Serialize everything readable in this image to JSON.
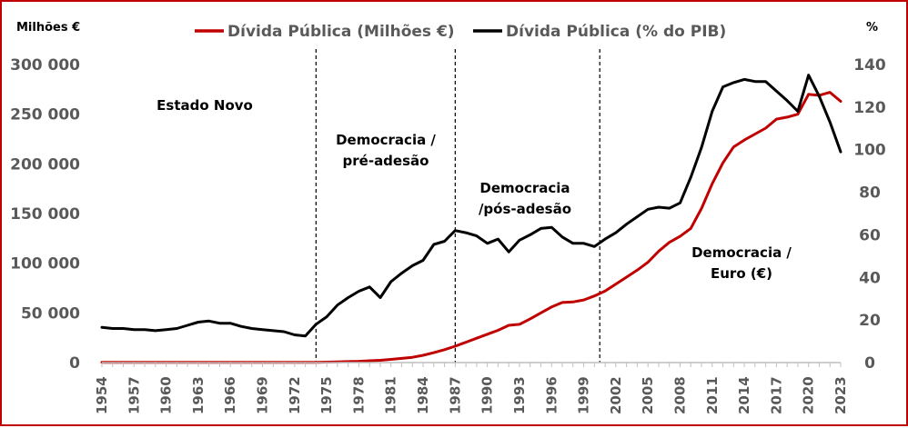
{
  "chart_data": {
    "type": "line",
    "title": "",
    "y_left_label": "Milhões €",
    "y_right_label": "%",
    "y_left_range": [
      0,
      300000
    ],
    "y_left_ticks": [
      0,
      50000,
      100000,
      150000,
      200000,
      250000,
      300000
    ],
    "y_left_tick_labels": [
      "0",
      "50 000",
      "100 000",
      "150 000",
      "200 000",
      "250 000",
      "300 000"
    ],
    "y_right_range": [
      0,
      140
    ],
    "y_right_ticks": [
      0,
      20,
      40,
      60,
      80,
      100,
      120,
      140
    ],
    "y_right_tick_labels": [
      "0",
      "20",
      "40",
      "60",
      "80",
      "100",
      "120",
      "140"
    ],
    "x_range": [
      1954,
      2023
    ],
    "x_tick_labels": [
      "1954",
      "1957",
      "1960",
      "1963",
      "1966",
      "1969",
      "1972",
      "1975",
      "1978",
      "1981",
      "1984",
      "1987",
      "1990",
      "1993",
      "1996",
      "1999",
      "2002",
      "2005",
      "2008",
      "2011",
      "2014",
      "2017",
      "2020",
      "2023"
    ],
    "legend_position": "top",
    "grid": false,
    "series": [
      {
        "name": "Dívida Pública (Milhões €)",
        "axis": "left",
        "color": "#c00000",
        "x": [
          1954,
          1955,
          1956,
          1957,
          1958,
          1959,
          1960,
          1961,
          1962,
          1963,
          1964,
          1965,
          1966,
          1967,
          1968,
          1969,
          1970,
          1971,
          1972,
          1973,
          1974,
          1975,
          1976,
          1977,
          1978,
          1979,
          1980,
          1981,
          1982,
          1983,
          1984,
          1985,
          1986,
          1987,
          1988,
          1989,
          1990,
          1991,
          1992,
          1993,
          1994,
          1995,
          1996,
          1997,
          1998,
          1999,
          2000,
          2001,
          2002,
          2003,
          2004,
          2005,
          2006,
          2007,
          2008,
          2009,
          2010,
          2011,
          2012,
          2013,
          2014,
          2015,
          2016,
          2017,
          2018,
          2019,
          2020,
          2021,
          2022,
          2023
        ],
        "values": [
          200,
          200,
          200,
          200,
          200,
          200,
          200,
          200,
          200,
          200,
          200,
          200,
          200,
          200,
          200,
          200,
          200,
          200,
          200,
          200,
          300,
          500,
          700,
          1000,
          1300,
          1800,
          2300,
          3200,
          4200,
          5300,
          7300,
          10000,
          13000,
          16500,
          20500,
          24500,
          28500,
          32500,
          37500,
          38500,
          44000,
          50000,
          56000,
          60500,
          61000,
          63000,
          67000,
          72000,
          79000,
          86000,
          93000,
          101000,
          112000,
          121000,
          127000,
          135000,
          155000,
          180000,
          201000,
          217000,
          224000,
          230000,
          236000,
          245000,
          247000,
          250000,
          270000,
          269000,
          272000,
          263000
        ]
      },
      {
        "name": "Dívida Pública (% do PIB)",
        "axis": "right",
        "color": "#000000",
        "x": [
          1954,
          1955,
          1956,
          1957,
          1958,
          1959,
          1960,
          1961,
          1962,
          1963,
          1964,
          1965,
          1966,
          1967,
          1968,
          1969,
          1970,
          1971,
          1972,
          1973,
          1974,
          1975,
          1976,
          1977,
          1978,
          1979,
          1980,
          1981,
          1982,
          1983,
          1984,
          1985,
          1986,
          1987,
          1988,
          1989,
          1990,
          1991,
          1992,
          1993,
          1994,
          1995,
          1996,
          1997,
          1998,
          1999,
          2000,
          2001,
          2002,
          2003,
          2004,
          2005,
          2006,
          2007,
          2008,
          2009,
          2010,
          2011,
          2012,
          2013,
          2014,
          2015,
          2016,
          2017,
          2018,
          2019,
          2020,
          2021,
          2022,
          2023
        ],
        "values": [
          16.5,
          16,
          16,
          15.5,
          15.5,
          15,
          15.5,
          16,
          17.5,
          19,
          19.5,
          18.5,
          18.5,
          17,
          16,
          15.5,
          15,
          14.5,
          13,
          12.5,
          18,
          21.5,
          27,
          30.5,
          33.5,
          35.5,
          30.5,
          38,
          42,
          45.5,
          48,
          55.5,
          57,
          62,
          61,
          59.5,
          56,
          58,
          52,
          57.5,
          60,
          63,
          63.5,
          59,
          56,
          56,
          54.5,
          58,
          61,
          65,
          68.5,
          72,
          73,
          72.5,
          75,
          87,
          101,
          118,
          129.5,
          131.5,
          133,
          132,
          132,
          127.5,
          123,
          118,
          135,
          125,
          113,
          99
        ]
      }
    ]
  },
  "periods": [
    {
      "label_line1": "Estado Novo",
      "label_line2": ""
    },
    {
      "label_line1": "Democracia /",
      "label_line2": "pré-adesão"
    },
    {
      "label_line1": "Democracia",
      "label_line2": "/pós-adesão"
    },
    {
      "label_line1": "Democracia /",
      "label_line2": "Euro (€)"
    }
  ]
}
